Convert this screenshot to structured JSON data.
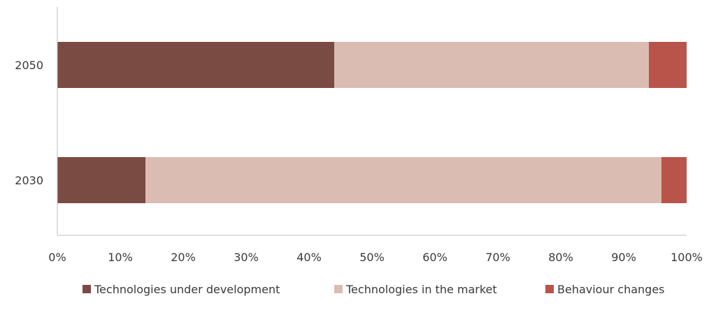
{
  "chart_data": {
    "type": "bar",
    "orientation": "horizontal",
    "stacked": true,
    "categories": [
      "2050",
      "2030"
    ],
    "series": [
      {
        "name": "Technologies under development",
        "values": [
          44,
          14
        ],
        "color": "#7a4b42"
      },
      {
        "name": "Technologies in the market",
        "values": [
          50,
          82
        ],
        "color": "#dbbcb2"
      },
      {
        "name": "Behaviour changes",
        "values": [
          6,
          4
        ],
        "color": "#b9544a"
      }
    ],
    "xlim": [
      0,
      100
    ],
    "xticks": [
      "0%",
      "10%",
      "20%",
      "30%",
      "40%",
      "50%",
      "60%",
      "70%",
      "80%",
      "90%",
      "100%"
    ],
    "grid": false,
    "legend": "bottom"
  }
}
